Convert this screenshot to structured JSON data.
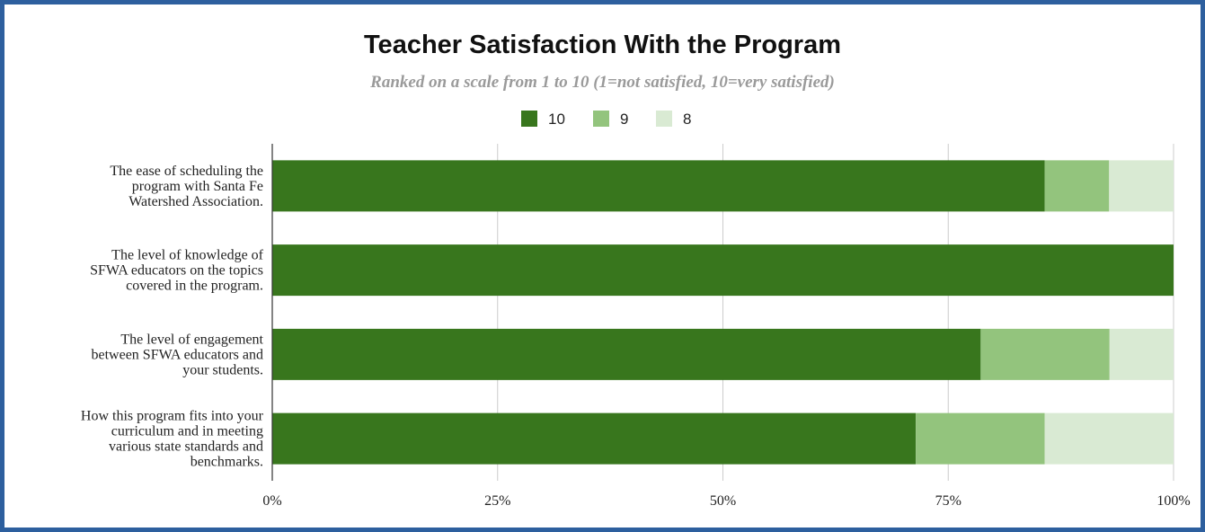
{
  "chart_data": {
    "type": "bar",
    "orientation": "horizontal",
    "stacked": "percent",
    "title": "Teacher Satisfaction With the Program",
    "subtitle": "Ranked on a scale from 1 to 10 (1=not satisfied, 10=very satisfied)",
    "categories": [
      [
        "The ease of scheduling the",
        "program with Santa Fe",
        "Watershed Association."
      ],
      [
        "The level of knowledge of",
        "SFWA educators on the topics",
        "covered in the program."
      ],
      [
        "The level of engagement",
        "between SFWA educators and",
        "your students."
      ],
      [
        "How this program fits into your",
        "curriculum and in meeting",
        "various state standards and",
        "benchmarks."
      ]
    ],
    "series": [
      {
        "name": "10",
        "color": "#38761d",
        "values": [
          85.7,
          100,
          78.6,
          71.4
        ]
      },
      {
        "name": "9",
        "color": "#93c47d",
        "values": [
          7.15,
          0,
          14.3,
          14.3
        ]
      },
      {
        "name": "8",
        "color": "#d9ead3",
        "values": [
          7.15,
          0,
          7.1,
          14.3
        ]
      }
    ],
    "xlim": [
      0,
      100
    ],
    "xticks": [
      "0%",
      "25%",
      "50%",
      "75%",
      "100%"
    ],
    "grid": true,
    "legend_position": "top"
  }
}
